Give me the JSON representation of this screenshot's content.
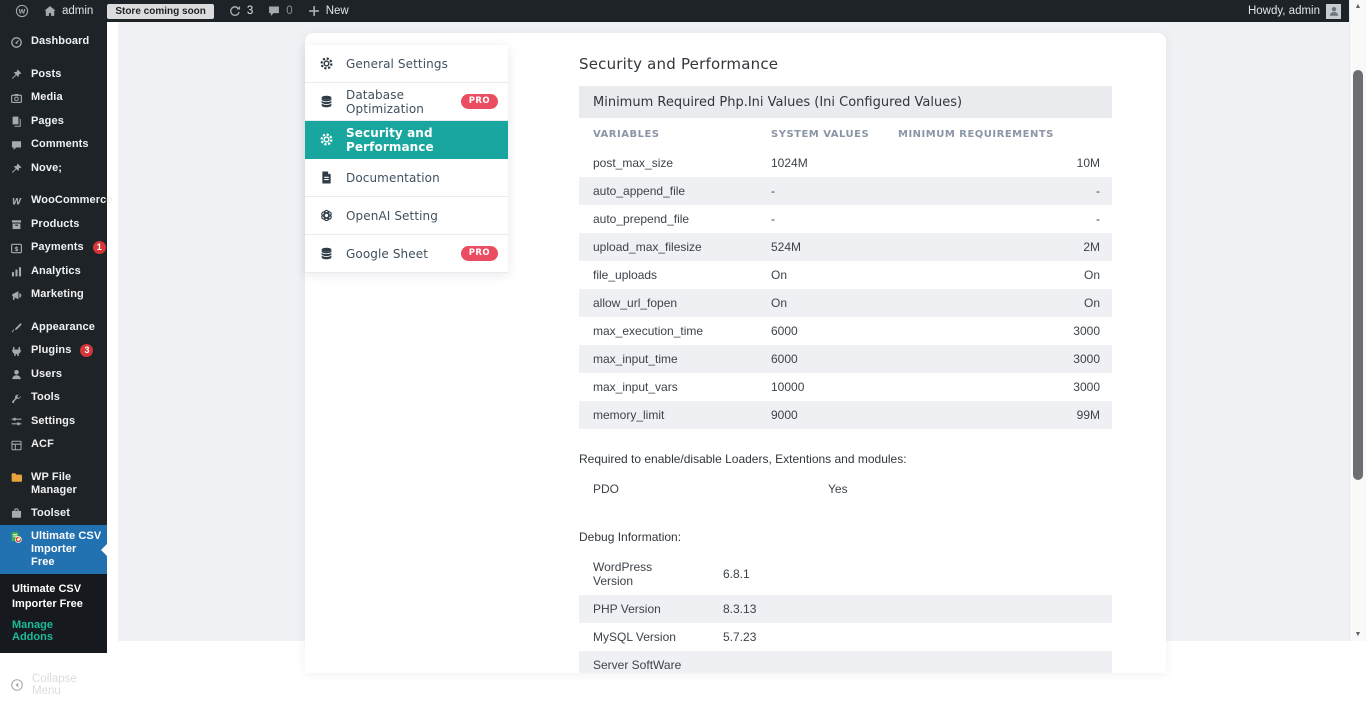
{
  "admin_bar": {
    "site_name": "admin",
    "store_badge": "Store coming soon",
    "update_count": "3",
    "comment_count": "0",
    "new_label": "New",
    "howdy": "Howdy, admin"
  },
  "sidebar": {
    "items": [
      {
        "label": "Dashboard",
        "icon": "dashboard-icon"
      },
      {
        "label": "Posts",
        "icon": "pin-icon",
        "gap_before": true
      },
      {
        "label": "Media",
        "icon": "media-icon"
      },
      {
        "label": "Pages",
        "icon": "pages-icon"
      },
      {
        "label": "Comments",
        "icon": "comment-icon"
      },
      {
        "label": "Nove;",
        "icon": "pin-icon"
      },
      {
        "label": "WooCommerce",
        "icon": "woocommerce-icon",
        "gap_before": true
      },
      {
        "label": "Products",
        "icon": "products-icon"
      },
      {
        "label": "Payments",
        "icon": "payments-icon",
        "badge": "1"
      },
      {
        "label": "Analytics",
        "icon": "analytics-icon"
      },
      {
        "label": "Marketing",
        "icon": "marketing-icon"
      },
      {
        "label": "Appearance",
        "icon": "appearance-icon",
        "gap_before": true
      },
      {
        "label": "Plugins",
        "icon": "plugins-icon",
        "badge": "3"
      },
      {
        "label": "Users",
        "icon": "users-icon"
      },
      {
        "label": "Tools",
        "icon": "tools-icon"
      },
      {
        "label": "Settings",
        "icon": "settings-icon"
      },
      {
        "label": "ACF",
        "icon": "acf-icon"
      },
      {
        "label": "WP File Manager",
        "icon": "folder-icon",
        "gap_before": true
      },
      {
        "label": "Toolset",
        "icon": "toolset-icon"
      },
      {
        "label": "Ultimate CSV Importer Free",
        "icon": "csv-importer-icon",
        "active": true
      }
    ],
    "submenu": {
      "title": "Ultimate CSV Importer Free",
      "link": "Manage Addons"
    },
    "collapse_label": "Collapse Menu"
  },
  "tabs": [
    {
      "label": "General Settings",
      "icon": "gear-icon"
    },
    {
      "label": "Database Optimization",
      "icon": "database-icon",
      "badge": "PRO"
    },
    {
      "label": "Security and Performance",
      "icon": "gear-icon",
      "active": true
    },
    {
      "label": "Documentation",
      "icon": "document-icon"
    },
    {
      "label": "OpenAI Setting",
      "icon": "openai-icon"
    },
    {
      "label": "Google Sheet",
      "icon": "database-icon",
      "badge": "PRO"
    }
  ],
  "main": {
    "title": "Security and Performance",
    "section_header": "Minimum Required Php.Ini Values (Ini Configured Values)",
    "ini_table": {
      "headers": [
        "VARIABLES",
        "SYSTEM VALUES",
        "MINIMUM REQUIREMENTS"
      ],
      "rows": [
        {
          "variable": "post_max_size",
          "system": "1024M",
          "minimum": "10M"
        },
        {
          "variable": "auto_append_file",
          "system": "-",
          "minimum": "-"
        },
        {
          "variable": "auto_prepend_file",
          "system": "-",
          "minimum": "-"
        },
        {
          "variable": "upload_max_filesize",
          "system": "524M",
          "minimum": "2M"
        },
        {
          "variable": "file_uploads",
          "system": "On",
          "minimum": "On"
        },
        {
          "variable": "allow_url_fopen",
          "system": "On",
          "minimum": "On"
        },
        {
          "variable": "max_execution_time",
          "system": "6000",
          "minimum": "3000"
        },
        {
          "variable": "max_input_time",
          "system": "6000",
          "minimum": "3000"
        },
        {
          "variable": "max_input_vars",
          "system": "10000",
          "minimum": "3000"
        },
        {
          "variable": "memory_limit",
          "system": "9000",
          "minimum": "99M"
        }
      ]
    },
    "loaders_note": "Required to enable/disable Loaders, Extentions and modules:",
    "loaders_table": {
      "rows": [
        {
          "name": "PDO",
          "value": "Yes"
        }
      ]
    },
    "debug_note": "Debug Information:",
    "debug_table": {
      "rows": [
        {
          "name": "WordPress Version",
          "value": "6.8.1"
        },
        {
          "name": "PHP Version",
          "value": "8.3.13"
        },
        {
          "name": "MySQL Version",
          "value": "5.7.23"
        },
        {
          "name": "Server SoftWare",
          "value": ""
        }
      ]
    }
  },
  "colors": {
    "accent_teal": "#19a69e",
    "pro_badge": "#ea4c62",
    "sidebar_active": "#2271b1",
    "notification_badge": "#d63638",
    "manage_addons_link": "#1bbc9b"
  }
}
